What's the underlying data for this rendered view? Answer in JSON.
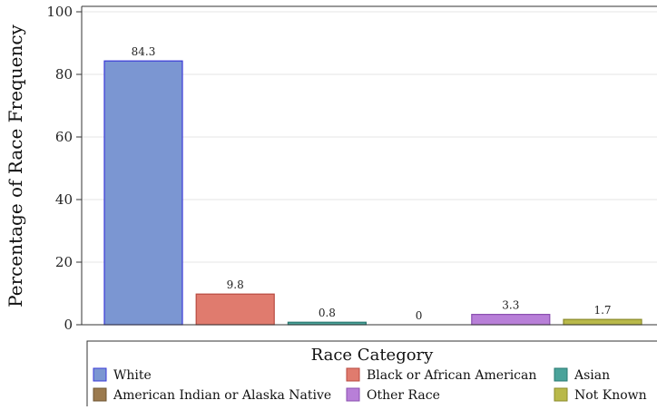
{
  "chart_data": {
    "type": "bar",
    "title": "",
    "xlabel": "",
    "ylabel": "Percentage of Race Frequency",
    "ylim": [
      0,
      100
    ],
    "yticks": [
      0,
      20,
      40,
      60,
      80,
      100
    ],
    "grid": true,
    "categories": [
      "White",
      "Black or African American",
      "Asian",
      "American Indian or Alaska Native",
      "Other Race",
      "Not Known"
    ],
    "values": [
      84.3,
      9.8,
      0.8,
      0,
      3.3,
      1.7
    ],
    "data_labels": [
      "84.3",
      "9.8",
      "0.8",
      "0",
      "3.3",
      "1.7"
    ],
    "colors": [
      "#7b96d2",
      "#e07b6e",
      "#4aa39a",
      "#9b7a4e",
      "#b87fd8",
      "#b9b94a"
    ],
    "edge_colors": [
      "#3a3ad8",
      "#b84a40",
      "#2a7a72",
      "#6e5432",
      "#8a4fb0",
      "#8a8a2a"
    ],
    "legend": {
      "title": "Race Category",
      "placement": "bottom",
      "items": [
        "White",
        "Black or African American",
        "Asian",
        "American Indian or Alaska Native",
        "Other Race",
        "Not Known"
      ]
    }
  }
}
